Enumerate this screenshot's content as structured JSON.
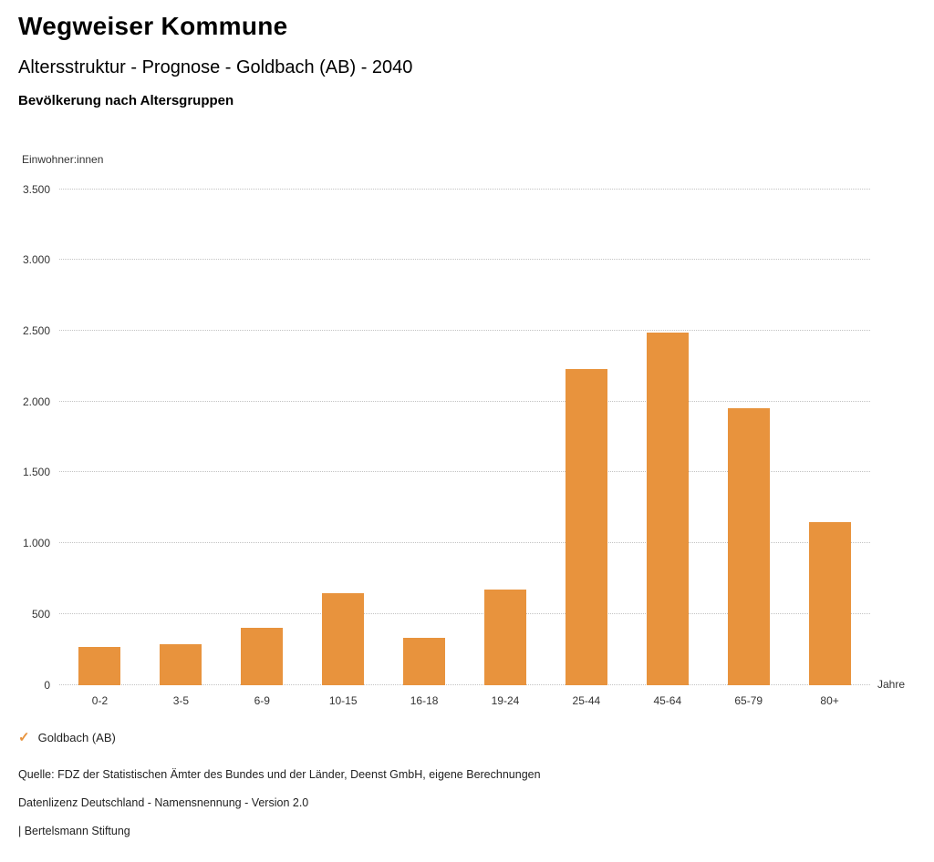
{
  "header": {
    "title": "Wegweiser Kommune",
    "subtitle": "Altersstruktur - Prognose - Goldbach (AB) - 2040",
    "chart_heading": "Bevölkerung nach Altersgruppen"
  },
  "chart_data": {
    "type": "bar",
    "title": "Bevölkerung nach Altersgruppen",
    "categories": [
      "0-2",
      "3-5",
      "6-9",
      "10-15",
      "16-18",
      "19-24",
      "25-44",
      "45-64",
      "65-79",
      "80+"
    ],
    "values": [
      270,
      290,
      400,
      650,
      330,
      670,
      2230,
      2490,
      1955,
      1150
    ],
    "series": [
      {
        "name": "Goldbach (AB)",
        "values": [
          270,
          290,
          400,
          650,
          330,
          670,
          2230,
          2490,
          1955,
          1150
        ]
      }
    ],
    "xlabel": "Jahre",
    "ylabel": "Einwohner:innen",
    "ylim": [
      0,
      3500
    ],
    "yticks": [
      {
        "value": 0,
        "label": "0"
      },
      {
        "value": 500,
        "label": "500"
      },
      {
        "value": 1000,
        "label": "1.000"
      },
      {
        "value": 1500,
        "label": "1.500"
      },
      {
        "value": 2000,
        "label": "2.000"
      },
      {
        "value": 2500,
        "label": "2.500"
      },
      {
        "value": 3000,
        "label": "3.000"
      },
      {
        "value": 3500,
        "label": "3.500"
      }
    ],
    "grid": "dotted horizontal",
    "legend_position": "bottom-left",
    "bar_color": "#E8933D"
  },
  "legend": {
    "items": [
      {
        "label": "Goldbach (AB)",
        "marker": "check-icon",
        "color": "#E8933D"
      }
    ]
  },
  "footer": {
    "source": "Quelle: FDZ der Statistischen Ämter des Bundes und der Länder, Deenst GmbH, eigene Berechnungen",
    "license": "Datenlizenz Deutschland - Namensnennung - Version 2.0",
    "attribution": "| Bertelsmann Stiftung"
  }
}
